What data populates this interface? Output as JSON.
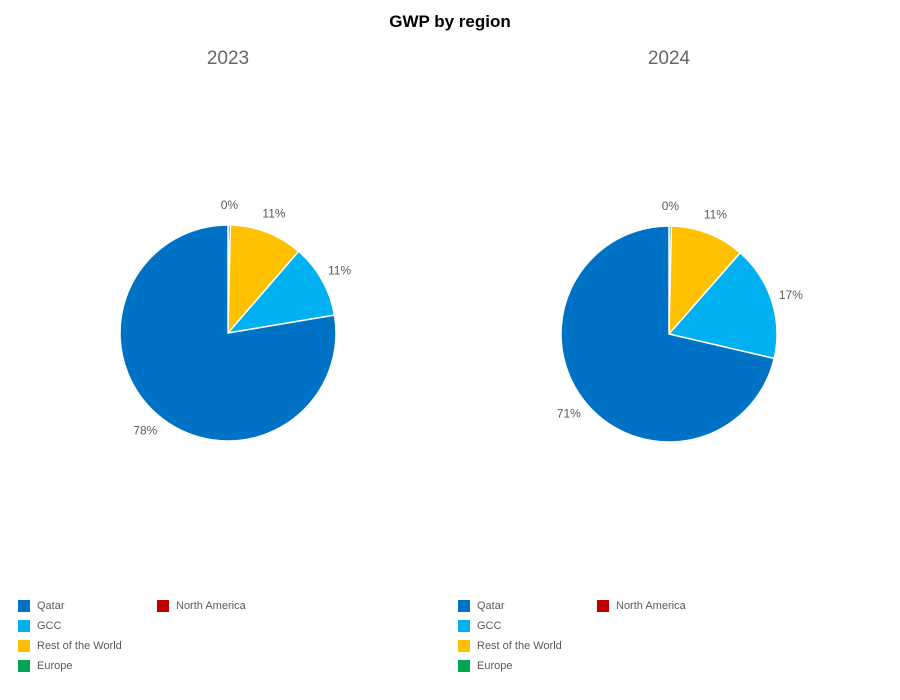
{
  "title": "GWP by region",
  "text_colors": {
    "title": "#000000",
    "subtitle": "#666666",
    "data_label": "#595959",
    "legend_label": "#595959"
  },
  "legend": {
    "position": "bottom",
    "items": [
      {
        "label": "Qatar",
        "color": "#0072C6"
      },
      {
        "label": "GCC",
        "color": "#00B0F0"
      },
      {
        "label": "Rest of the World",
        "color": "#FFC000"
      },
      {
        "label": "Europe",
        "color": "#00A651"
      },
      {
        "label": "North America",
        "color": "#C00000"
      }
    ]
  },
  "chart_data": [
    {
      "type": "pie",
      "title": "2023",
      "start_angle_deg": 0,
      "direction": "clockwise",
      "slices": [
        {
          "label": "Europe",
          "pct": 0,
          "display": "0%",
          "color": "#00A651"
        },
        {
          "label": "Rest of the World",
          "pct": 11,
          "display": "11%",
          "color": "#FFC000"
        },
        {
          "label": "GCC",
          "pct": 11,
          "display": "11%",
          "color": "#00B0F0"
        },
        {
          "label": "Qatar",
          "pct": 78,
          "display": "78%",
          "color": "#0072C6"
        },
        {
          "label": "North America",
          "pct": 0,
          "display": null,
          "color": "#C00000"
        }
      ]
    },
    {
      "type": "pie",
      "title": "2024",
      "start_angle_deg": 0,
      "direction": "clockwise",
      "slices": [
        {
          "label": "Europe",
          "pct": 0,
          "display": "0%",
          "color": "#00A651"
        },
        {
          "label": "Rest of the World",
          "pct": 11,
          "display": "11%",
          "color": "#FFC000"
        },
        {
          "label": "GCC",
          "pct": 17,
          "display": "17%",
          "color": "#00B0F0"
        },
        {
          "label": "Qatar",
          "pct": 71,
          "display": "71%",
          "color": "#0072C6"
        },
        {
          "label": "North America",
          "pct": 0,
          "display": null,
          "color": "#C00000"
        }
      ]
    }
  ]
}
